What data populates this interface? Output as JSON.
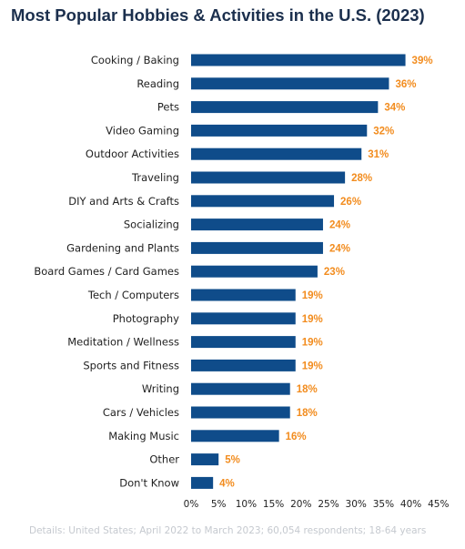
{
  "chart_data": {
    "type": "bar",
    "orientation": "horizontal",
    "title": "Most Popular Hobbies & Activities in the U.S. (2023)",
    "categories": [
      "Cooking / Baking",
      "Reading",
      "Pets",
      "Video Gaming",
      "Outdoor Activities",
      "Traveling",
      "DIY and Arts & Crafts",
      "Socializing",
      "Gardening and Plants",
      "Board Games / Card Games",
      "Tech / Computers",
      "Photography",
      "Meditation / Wellness",
      "Sports and Fitness",
      "Writing",
      "Cars / Vehicles",
      "Making Music",
      "Other",
      "Don't Know"
    ],
    "values": [
      39,
      36,
      34,
      32,
      31,
      28,
      26,
      24,
      24,
      23,
      19,
      19,
      19,
      19,
      18,
      18,
      16,
      5,
      4
    ],
    "value_labels": [
      "39%",
      "36%",
      "34%",
      "32%",
      "31%",
      "28%",
      "26%",
      "24%",
      "24%",
      "23%",
      "19%",
      "19%",
      "19%",
      "19%",
      "18%",
      "18%",
      "16%",
      "5%",
      "4%"
    ],
    "xlim": [
      0,
      45
    ],
    "x_ticks": [
      "0%",
      "5%",
      "10%",
      "15%",
      "20%",
      "25%",
      "30%",
      "35%",
      "40%",
      "45%"
    ],
    "xlabel": "",
    "ylabel": "",
    "grid": false,
    "legend": "none",
    "colors": {
      "bar": "#0f4c8a",
      "value_label": "#f28c1e",
      "title": "#1b2f4d",
      "text": "#222222",
      "footnote": "#c5c9cf"
    }
  },
  "footnote": "Details: United States; April 2022 to March 2023; 60,054 respondents; 18-64 years"
}
